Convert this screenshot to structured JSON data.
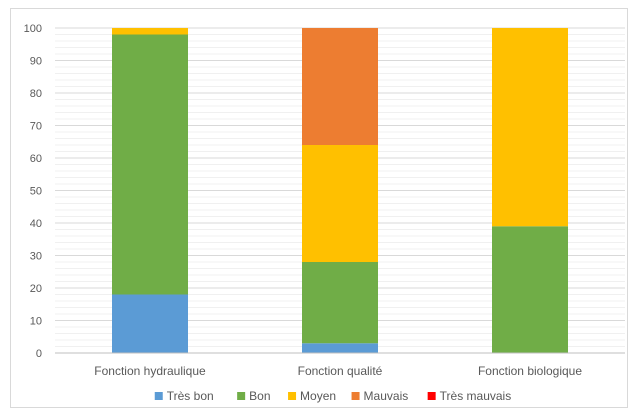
{
  "chart_data": {
    "type": "bar",
    "stacked": true,
    "percent": true,
    "categories": [
      "Fonction hydraulique",
      "Fonction qualité",
      "Fonction biologique"
    ],
    "series": [
      {
        "name": "Très bon",
        "color": "#5b9bd5",
        "values": [
          18,
          3,
          0
        ]
      },
      {
        "name": "Bon",
        "color": "#70ad47",
        "values": [
          80,
          25,
          39
        ]
      },
      {
        "name": "Moyen",
        "color": "#ffc000",
        "values": [
          2,
          36,
          61
        ]
      },
      {
        "name": "Mauvais",
        "color": "#ed7d31",
        "values": [
          0,
          36,
          0
        ]
      },
      {
        "name": "Très mauvais",
        "color": "#ff0000",
        "values": [
          0,
          0,
          0
        ]
      }
    ],
    "yticks": [
      "0",
      "10",
      "20",
      "30",
      "40",
      "50",
      "60",
      "70",
      "80",
      "90",
      "100"
    ],
    "ylim": [
      0,
      100
    ],
    "grid": true,
    "legend_position": "bottom",
    "title": "",
    "xlabel": "",
    "ylabel": ""
  }
}
